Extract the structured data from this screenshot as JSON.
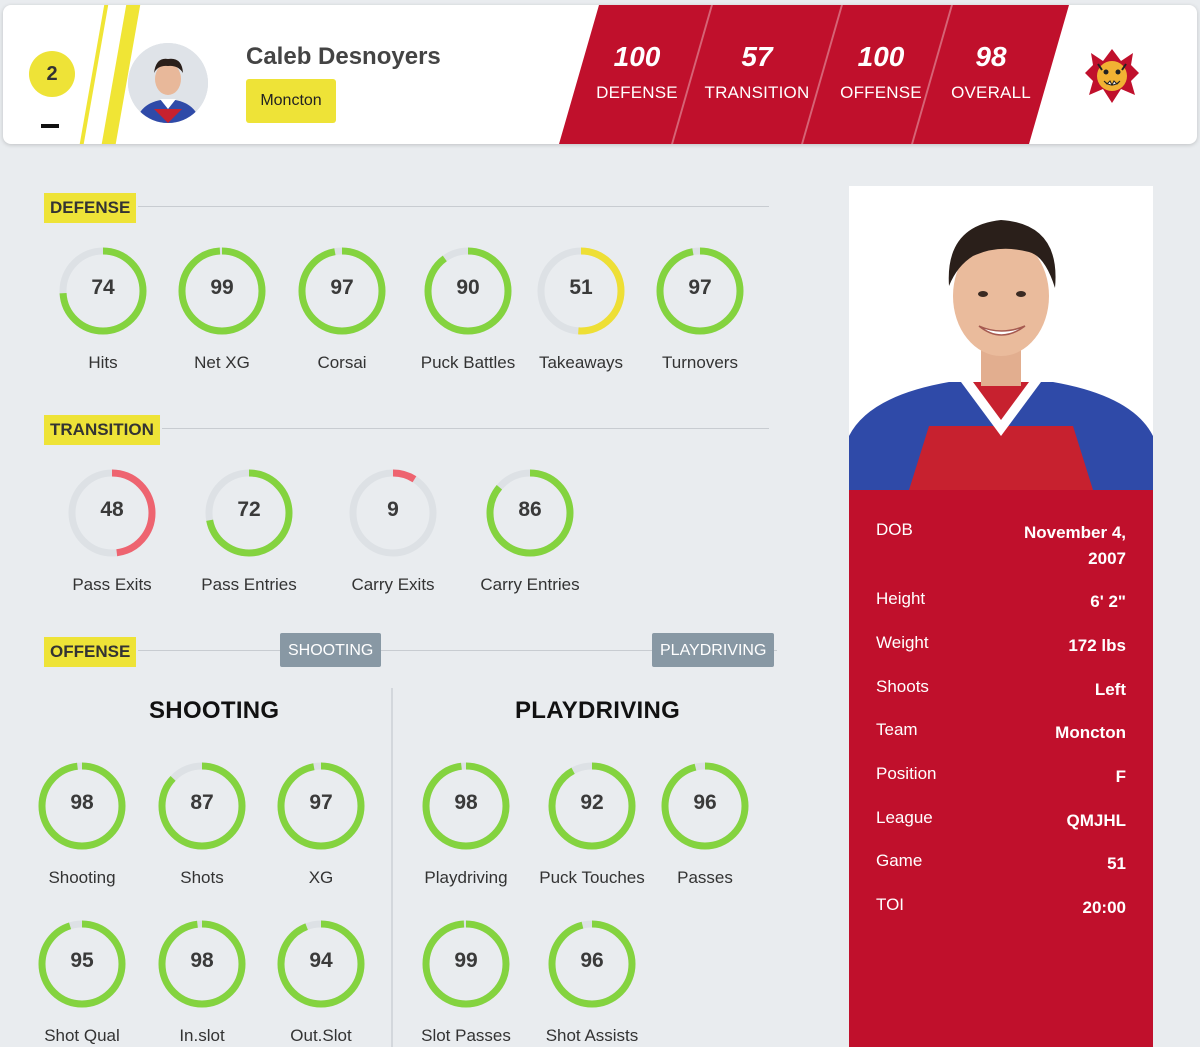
{
  "header": {
    "jersey_number": "2",
    "player_name": "Caleb Desnoyers",
    "team": "Moncton",
    "dash": "–",
    "ratings": [
      {
        "value": "100",
        "label": "DEFENSE"
      },
      {
        "value": "57",
        "label": "TRANSITION"
      },
      {
        "value": "100",
        "label": "OFFENSE"
      },
      {
        "value": "98",
        "label": "OVERALL"
      }
    ],
    "accent_color": "#c0102c",
    "highlight_color": "#eee337"
  },
  "defense": {
    "title": "DEFENSE",
    "metrics": [
      {
        "value": 74,
        "label": "Hits"
      },
      {
        "value": 99,
        "label": "Net XG"
      },
      {
        "value": 97,
        "label": "Corsai"
      },
      {
        "value": 90,
        "label": "Puck Battles"
      },
      {
        "value": 51,
        "label": "Takeaways"
      },
      {
        "value": 97,
        "label": "Turnovers"
      }
    ]
  },
  "transition": {
    "title": "TRANSITION",
    "metrics": [
      {
        "value": 48,
        "label": "Pass Exits"
      },
      {
        "value": 72,
        "label": "Pass Entries"
      },
      {
        "value": 9,
        "label": "Carry Exits"
      },
      {
        "value": 86,
        "label": "Carry Entries"
      }
    ]
  },
  "offense": {
    "title": "OFFENSE",
    "chip_shooting": "SHOOTING",
    "chip_playdriving": "PLAYDRIVING",
    "shooting": {
      "title": "SHOOTING",
      "metrics": [
        {
          "value": 98,
          "label": "Shooting"
        },
        {
          "value": 87,
          "label": "Shots"
        },
        {
          "value": 97,
          "label": "XG"
        },
        {
          "value": 95,
          "label": "Shot Qual"
        },
        {
          "value": 98,
          "label": "In.slot"
        },
        {
          "value": 94,
          "label": "Out.Slot"
        }
      ]
    },
    "playdriving": {
      "title": "PLAYDRIVING",
      "metrics": [
        {
          "value": 98,
          "label": "Playdriving"
        },
        {
          "value": 92,
          "label": "Puck Touches"
        },
        {
          "value": 96,
          "label": "Passes"
        },
        {
          "value": 99,
          "label": "Slot Passes"
        },
        {
          "value": 96,
          "label": "Shot Assists"
        }
      ]
    }
  },
  "gauge_colors": {
    "high": "#84d33f",
    "mid": "#eedf35",
    "low": "#ee6470",
    "track": "#dde1e5"
  },
  "profile": [
    {
      "key": "DOB",
      "value": "November 4, 2007"
    },
    {
      "key": "Height",
      "value": "6' 2\""
    },
    {
      "key": "Weight",
      "value": "172 lbs"
    },
    {
      "key": "Shoots",
      "value": "Left"
    },
    {
      "key": "Team",
      "value": "Moncton"
    },
    {
      "key": "Position",
      "value": "F"
    },
    {
      "key": "League",
      "value": "QMJHL"
    },
    {
      "key": "Game",
      "value": "51"
    },
    {
      "key": "TOI",
      "value": "20:00"
    }
  ]
}
